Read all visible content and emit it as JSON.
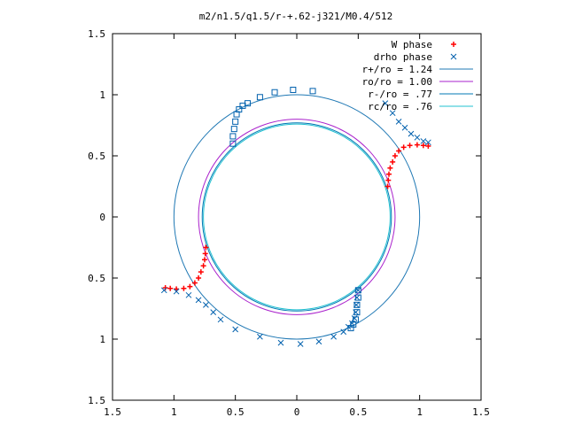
{
  "chart_data": {
    "type": "scatter",
    "title": "m2/n1.5/q1.5/r-+.62-j321/M0.4/512",
    "xlabel": "",
    "ylabel": "",
    "xlim": [
      -1.5,
      1.5
    ],
    "ylim": [
      -1.5,
      1.5
    ],
    "x_tick_values": [
      -1.5,
      -1,
      -0.5,
      0,
      0.5,
      1,
      1.5
    ],
    "x_tick_labels": [
      "1.5",
      "1",
      "0.5",
      "0",
      "0.5",
      "1",
      "1.5"
    ],
    "y_tick_values": [
      1.5,
      1,
      0.5,
      0,
      -0.5,
      -1,
      -1.5
    ],
    "y_tick_labels": [
      "1.5",
      "1",
      "0.5",
      "0",
      "0.5",
      "1",
      "1.5"
    ],
    "grid": false,
    "legend_position": "top-right",
    "series": [
      {
        "name": "W phase",
        "marker": "plus",
        "color": "#ff0000",
        "points": [
          [
            0.74,
            0.25
          ],
          [
            0.745,
            0.3
          ],
          [
            0.75,
            0.35
          ],
          [
            0.76,
            0.4
          ],
          [
            0.78,
            0.45
          ],
          [
            0.8,
            0.5
          ],
          [
            0.83,
            0.54
          ],
          [
            0.87,
            0.57
          ],
          [
            0.92,
            0.585
          ],
          [
            0.98,
            0.59
          ],
          [
            1.03,
            0.585
          ],
          [
            1.07,
            0.58
          ],
          [
            -0.74,
            -0.25
          ],
          [
            -0.745,
            -0.3
          ],
          [
            -0.75,
            -0.35
          ],
          [
            -0.76,
            -0.4
          ],
          [
            -0.78,
            -0.45
          ],
          [
            -0.8,
            -0.5
          ],
          [
            -0.83,
            -0.54
          ],
          [
            -0.87,
            -0.57
          ],
          [
            -0.92,
            -0.585
          ],
          [
            -0.98,
            -0.59
          ],
          [
            -1.03,
            -0.585
          ],
          [
            -1.07,
            -0.58
          ]
        ]
      },
      {
        "name": "drho phase",
        "marker": "cross",
        "color": "#0060ad",
        "points": [
          [
            0.5,
            -0.6
          ],
          [
            0.49,
            -0.66
          ],
          [
            0.485,
            -0.72
          ],
          [
            0.48,
            -0.78
          ],
          [
            0.47,
            -0.83
          ],
          [
            0.45,
            -0.87
          ],
          [
            0.42,
            -0.9
          ],
          [
            0.38,
            -0.94
          ],
          [
            0.3,
            -0.98
          ],
          [
            0.18,
            -1.02
          ],
          [
            0.03,
            -1.04
          ],
          [
            -0.13,
            -1.03
          ],
          [
            -0.3,
            -0.98
          ],
          [
            -0.5,
            -0.92
          ],
          [
            -0.62,
            -0.84
          ],
          [
            -0.68,
            -0.78
          ],
          [
            -0.74,
            -0.72
          ],
          [
            -0.8,
            -0.68
          ],
          [
            -0.88,
            -0.64
          ],
          [
            -0.98,
            -0.61
          ],
          [
            -1.08,
            -0.6
          ],
          [
            0.72,
            0.93
          ],
          [
            0.78,
            0.85
          ],
          [
            0.83,
            0.78
          ],
          [
            0.88,
            0.73
          ],
          [
            0.93,
            0.68
          ],
          [
            0.98,
            0.65
          ],
          [
            1.03,
            0.62
          ],
          [
            1.07,
            0.61
          ]
        ]
      },
      {
        "name": "",
        "marker": "square",
        "color": "#0060ad",
        "points": [
          [
            -0.52,
            0.6
          ],
          [
            -0.52,
            0.66
          ],
          [
            -0.51,
            0.72
          ],
          [
            -0.5,
            0.78
          ],
          [
            -0.49,
            0.84
          ],
          [
            -0.47,
            0.88
          ],
          [
            -0.44,
            0.91
          ],
          [
            -0.4,
            0.93
          ],
          [
            -0.3,
            0.98
          ],
          [
            -0.18,
            1.02
          ],
          [
            -0.03,
            1.04
          ],
          [
            0.13,
            1.03
          ],
          [
            0.5,
            -0.6
          ],
          [
            0.5,
            -0.66
          ],
          [
            0.49,
            -0.72
          ],
          [
            0.49,
            -0.78
          ],
          [
            0.48,
            -0.84
          ],
          [
            0.46,
            -0.88
          ],
          [
            0.44,
            -0.91
          ]
        ]
      }
    ],
    "circles": [
      {
        "name": "r+/ro = 1.24",
        "radius": 1.0,
        "color": "#1f78b4"
      },
      {
        "name": "ro/ro = 1.00",
        "radius": 0.8,
        "color": "#aa22cc"
      },
      {
        "name": "r-/ro = .77",
        "radius": 0.77,
        "color": "#0078b4"
      },
      {
        "name": "rc/ro = .76",
        "radius": 0.76,
        "color": "#20c0d0"
      }
    ]
  }
}
